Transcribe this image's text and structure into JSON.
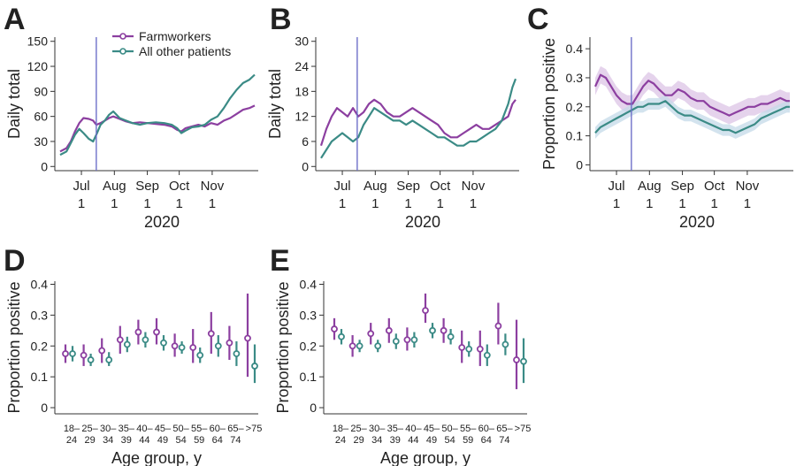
{
  "legend": {
    "series": [
      {
        "name": "Farmworkers",
        "color": "#8c3fa0"
      },
      {
        "name": "All other patients",
        "color": "#3b8b86"
      }
    ]
  },
  "colors": {
    "farm": "#8c3fa0",
    "other": "#3b8b86",
    "vline": "#6e70c8",
    "farm_band": "#dcc4e6",
    "other_band": "#c4d9e8"
  },
  "chart_data": [
    {
      "panel": "A",
      "type": "line",
      "ylabel": "Daily total",
      "xlabel": "2020",
      "xticks": [
        {
          "month": "Jul",
          "day": "1",
          "d": 20
        },
        {
          "month": "Aug",
          "day": "1",
          "d": 51
        },
        {
          "month": "Sep",
          "day": "1",
          "d": 82
        },
        {
          "month": "Oct",
          "day": "1",
          "d": 112
        },
        {
          "month": "Nov",
          "day": "1",
          "d": 143
        }
      ],
      "x_range_days": [
        0,
        183
      ],
      "ylim": [
        -5,
        155
      ],
      "yticks": [
        "0",
        "30",
        "60",
        "90",
        "120",
        "150"
      ],
      "vline_day": 34,
      "series": [
        {
          "name": "Farmworkers",
          "x": [
            0,
            6,
            10,
            14,
            18,
            22,
            27,
            31,
            34,
            38,
            42,
            46,
            50,
            56,
            62,
            68,
            75,
            82,
            90,
            98,
            105,
            110,
            114,
            118,
            124,
            130,
            136,
            142,
            148,
            154,
            160,
            166,
            172,
            178,
            183
          ],
          "values": [
            18,
            22,
            30,
            42,
            52,
            58,
            57,
            55,
            50,
            52,
            55,
            58,
            60,
            57,
            54,
            52,
            53,
            52,
            51,
            50,
            48,
            44,
            42,
            46,
            48,
            50,
            48,
            52,
            50,
            55,
            58,
            63,
            68,
            70,
            73
          ]
        },
        {
          "name": "All other patients",
          "x": [
            0,
            6,
            10,
            14,
            18,
            22,
            27,
            31,
            34,
            38,
            42,
            46,
            50,
            56,
            62,
            68,
            75,
            82,
            90,
            98,
            105,
            110,
            114,
            118,
            124,
            130,
            136,
            142,
            148,
            154,
            160,
            166,
            172,
            178,
            183
          ],
          "values": [
            14,
            18,
            28,
            38,
            45,
            40,
            33,
            30,
            38,
            50,
            55,
            62,
            66,
            58,
            55,
            52,
            50,
            52,
            53,
            52,
            50,
            46,
            40,
            43,
            47,
            48,
            50,
            56,
            60,
            70,
            82,
            92,
            100,
            104,
            110
          ]
        }
      ]
    },
    {
      "panel": "B",
      "type": "line",
      "ylabel": "Daily total",
      "xlabel": "2020",
      "xticks": [
        {
          "month": "Jul",
          "day": "1",
          "d": 20
        },
        {
          "month": "Aug",
          "day": "1",
          "d": 51
        },
        {
          "month": "Sep",
          "day": "1",
          "d": 82
        },
        {
          "month": "Oct",
          "day": "1",
          "d": 112
        },
        {
          "month": "Nov",
          "day": "1",
          "d": 143
        }
      ],
      "x_range_days": [
        0,
        183
      ],
      "ylim": [
        -1,
        31
      ],
      "yticks": [
        "0",
        "6",
        "12",
        "18",
        "24",
        "30"
      ],
      "vline_day": 34,
      "series": [
        {
          "name": "Farmworkers",
          "x": [
            0,
            5,
            10,
            15,
            20,
            25,
            30,
            35,
            40,
            45,
            50,
            56,
            62,
            68,
            74,
            80,
            86,
            92,
            98,
            104,
            110,
            116,
            122,
            128,
            134,
            140,
            146,
            152,
            158,
            164,
            170,
            176,
            180,
            183
          ],
          "values": [
            5,
            9,
            12,
            14,
            13,
            12,
            14,
            12,
            13,
            15,
            16,
            15,
            13,
            12,
            12,
            13,
            14,
            13,
            12,
            11,
            10,
            8,
            7,
            7,
            8,
            9,
            10,
            9,
            9,
            10,
            11,
            12,
            15,
            16
          ]
        },
        {
          "name": "All other patients",
          "x": [
            0,
            5,
            10,
            15,
            20,
            25,
            30,
            35,
            40,
            45,
            50,
            56,
            62,
            68,
            74,
            80,
            86,
            92,
            98,
            104,
            110,
            116,
            122,
            128,
            134,
            140,
            146,
            152,
            158,
            164,
            170,
            176,
            180,
            183
          ],
          "values": [
            2,
            4,
            6,
            7,
            8,
            7,
            6,
            7,
            10,
            12,
            14,
            13,
            12,
            11,
            11,
            10,
            11,
            10,
            9,
            8,
            7,
            7,
            6,
            5,
            5,
            6,
            6,
            7,
            8,
            9,
            11,
            15,
            19,
            21
          ]
        }
      ]
    },
    {
      "panel": "C",
      "type": "line",
      "ylabel": "Proportion positive",
      "xlabel": "2020",
      "xticks": [
        {
          "month": "Jul",
          "day": "1",
          "d": 20
        },
        {
          "month": "Aug",
          "day": "1",
          "d": 51
        },
        {
          "month": "Sep",
          "day": "1",
          "d": 82
        },
        {
          "month": "Oct",
          "day": "1",
          "d": 112
        },
        {
          "month": "Nov",
          "day": "1",
          "d": 143
        }
      ],
      "x_range_days": [
        0,
        183
      ],
      "ylim": [
        -0.02,
        0.44
      ],
      "yticks": [
        "0",
        "0.1",
        "0.2",
        "0.3",
        "0.4"
      ],
      "vline_day": 34,
      "series": [
        {
          "name": "Farmworkers",
          "x": [
            0,
            5,
            10,
            15,
            20,
            25,
            30,
            35,
            40,
            45,
            50,
            55,
            60,
            66,
            72,
            78,
            84,
            90,
            96,
            102,
            108,
            114,
            120,
            126,
            132,
            138,
            144,
            150,
            156,
            162,
            168,
            174,
            180,
            183
          ],
          "values": [
            0.27,
            0.31,
            0.3,
            0.27,
            0.24,
            0.22,
            0.21,
            0.21,
            0.24,
            0.27,
            0.29,
            0.28,
            0.26,
            0.24,
            0.24,
            0.26,
            0.25,
            0.23,
            0.22,
            0.22,
            0.2,
            0.19,
            0.18,
            0.17,
            0.18,
            0.19,
            0.2,
            0.2,
            0.21,
            0.21,
            0.22,
            0.23,
            0.22,
            0.22
          ],
          "band": 0.03
        },
        {
          "name": "All other patients",
          "x": [
            0,
            5,
            10,
            15,
            20,
            25,
            30,
            35,
            40,
            45,
            50,
            55,
            60,
            66,
            72,
            78,
            84,
            90,
            96,
            102,
            108,
            114,
            120,
            126,
            132,
            138,
            144,
            150,
            156,
            162,
            168,
            174,
            180,
            183
          ],
          "values": [
            0.11,
            0.13,
            0.14,
            0.15,
            0.16,
            0.17,
            0.18,
            0.19,
            0.2,
            0.2,
            0.21,
            0.21,
            0.21,
            0.22,
            0.2,
            0.18,
            0.17,
            0.17,
            0.16,
            0.15,
            0.14,
            0.13,
            0.12,
            0.12,
            0.11,
            0.12,
            0.13,
            0.14,
            0.16,
            0.17,
            0.18,
            0.19,
            0.2,
            0.2
          ],
          "band": 0.02
        }
      ]
    },
    {
      "panel": "D",
      "type": "scatter",
      "ylabel": "Proportion positive",
      "xlabel": "Age group, y",
      "ylim": [
        -0.02,
        0.41
      ],
      "yticks": [
        "0",
        "0.1",
        "0.2",
        "0.3",
        "0.4"
      ],
      "categories": [
        [
          "18–",
          "24"
        ],
        [
          "25–",
          "29"
        ],
        [
          "30–",
          "34"
        ],
        [
          "35–",
          "39"
        ],
        [
          "40–",
          "44"
        ],
        [
          "45–",
          "49"
        ],
        [
          "50–",
          "54"
        ],
        [
          "55–",
          "59"
        ],
        [
          "60–",
          "64"
        ],
        [
          "65–",
          "74"
        ],
        [
          ">75",
          ""
        ]
      ],
      "series": [
        {
          "name": "Farmworkers",
          "values": [
            0.175,
            0.17,
            0.185,
            0.22,
            0.245,
            0.245,
            0.2,
            0.195,
            0.24,
            0.21,
            0.225
          ],
          "low": [
            0.145,
            0.135,
            0.145,
            0.175,
            0.205,
            0.205,
            0.165,
            0.145,
            0.175,
            0.155,
            0.1
          ],
          "high": [
            0.205,
            0.205,
            0.225,
            0.265,
            0.285,
            0.29,
            0.24,
            0.255,
            0.31,
            0.265,
            0.37
          ]
        },
        {
          "name": "All other patients",
          "values": [
            0.175,
            0.155,
            0.155,
            0.205,
            0.22,
            0.21,
            0.195,
            0.17,
            0.2,
            0.175,
            0.135
          ],
          "low": [
            0.15,
            0.135,
            0.135,
            0.18,
            0.195,
            0.185,
            0.175,
            0.145,
            0.165,
            0.135,
            0.08
          ],
          "high": [
            0.2,
            0.175,
            0.18,
            0.23,
            0.245,
            0.235,
            0.215,
            0.195,
            0.235,
            0.215,
            0.205
          ]
        }
      ]
    },
    {
      "panel": "E",
      "type": "scatter",
      "ylabel": "Proportion positive",
      "xlabel": "Age group, y",
      "ylim": [
        -0.02,
        0.41
      ],
      "yticks": [
        "0",
        "0.1",
        "0.2",
        "0.3",
        "0.4"
      ],
      "categories": [
        [
          "18–",
          "24"
        ],
        [
          "25–",
          "29"
        ],
        [
          "30–",
          "34"
        ],
        [
          "35–",
          "39"
        ],
        [
          "40–",
          "44"
        ],
        [
          "45–",
          "49"
        ],
        [
          "50–",
          "54"
        ],
        [
          "55–",
          "59"
        ],
        [
          "60–",
          "64"
        ],
        [
          "65–",
          "74"
        ],
        [
          ">75",
          ""
        ]
      ],
      "series": [
        {
          "name": "Farmworkers",
          "values": [
            0.255,
            0.2,
            0.24,
            0.25,
            0.22,
            0.315,
            0.25,
            0.195,
            0.19,
            0.265,
            0.155
          ],
          "low": [
            0.22,
            0.165,
            0.205,
            0.21,
            0.185,
            0.275,
            0.21,
            0.145,
            0.135,
            0.205,
            0.06
          ],
          "high": [
            0.29,
            0.235,
            0.275,
            0.29,
            0.26,
            0.37,
            0.29,
            0.25,
            0.25,
            0.34,
            0.285
          ]
        },
        {
          "name": "All other patients",
          "values": [
            0.23,
            0.2,
            0.2,
            0.215,
            0.22,
            0.25,
            0.23,
            0.19,
            0.17,
            0.205,
            0.15
          ],
          "low": [
            0.205,
            0.18,
            0.18,
            0.19,
            0.195,
            0.225,
            0.205,
            0.165,
            0.135,
            0.17,
            0.08
          ],
          "high": [
            0.255,
            0.22,
            0.22,
            0.24,
            0.245,
            0.275,
            0.255,
            0.215,
            0.205,
            0.24,
            0.225
          ]
        }
      ]
    }
  ]
}
